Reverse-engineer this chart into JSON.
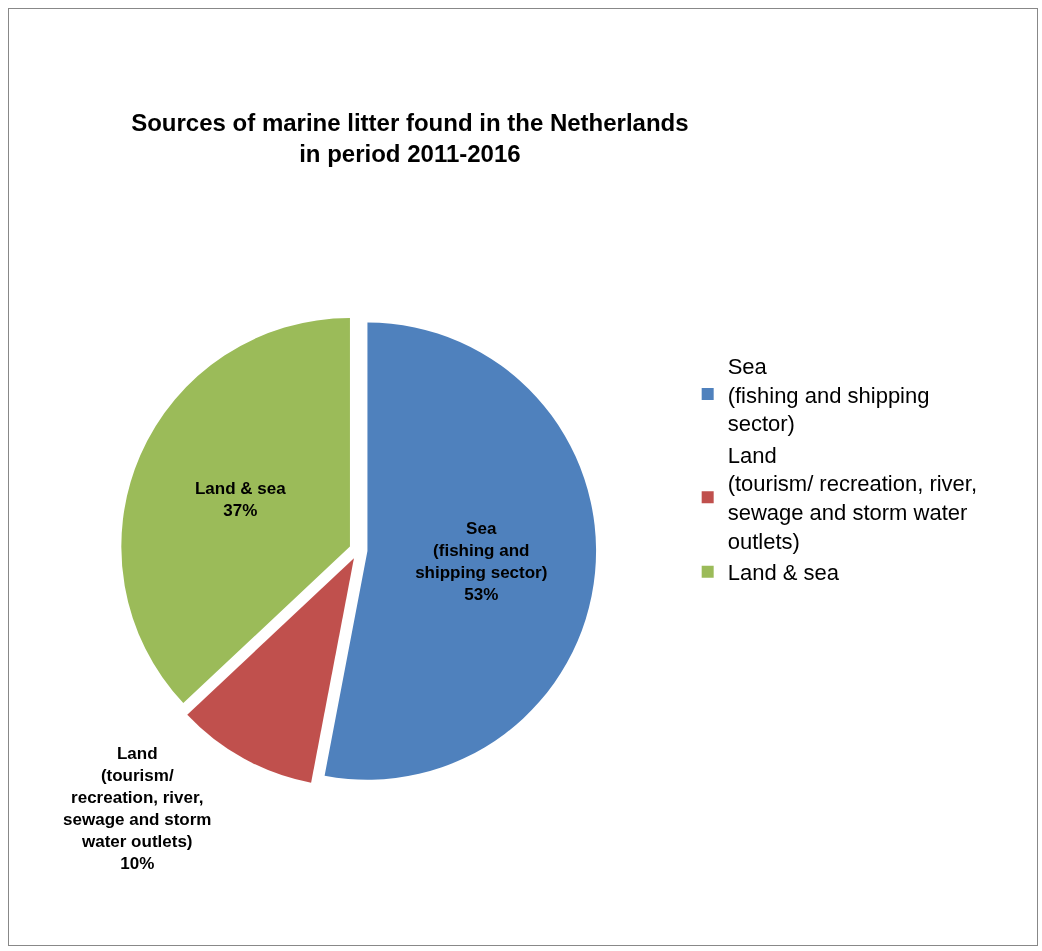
{
  "chart_data": {
    "type": "pie",
    "title": "Sources of marine litter found in the Netherlands in period 2011-2016",
    "categories": [
      "Sea (fishing and shipping sector)",
      "Land (tourism/ recreation, river, sewage and storm water outlets)",
      "Land & sea"
    ],
    "values": [
      53,
      10,
      37
    ],
    "colors": [
      "#4f81bd",
      "#c0504d",
      "#9bbb59"
    ],
    "value_labels": [
      "53%",
      "10%",
      "37%"
    ],
    "legend": "right"
  }
}
